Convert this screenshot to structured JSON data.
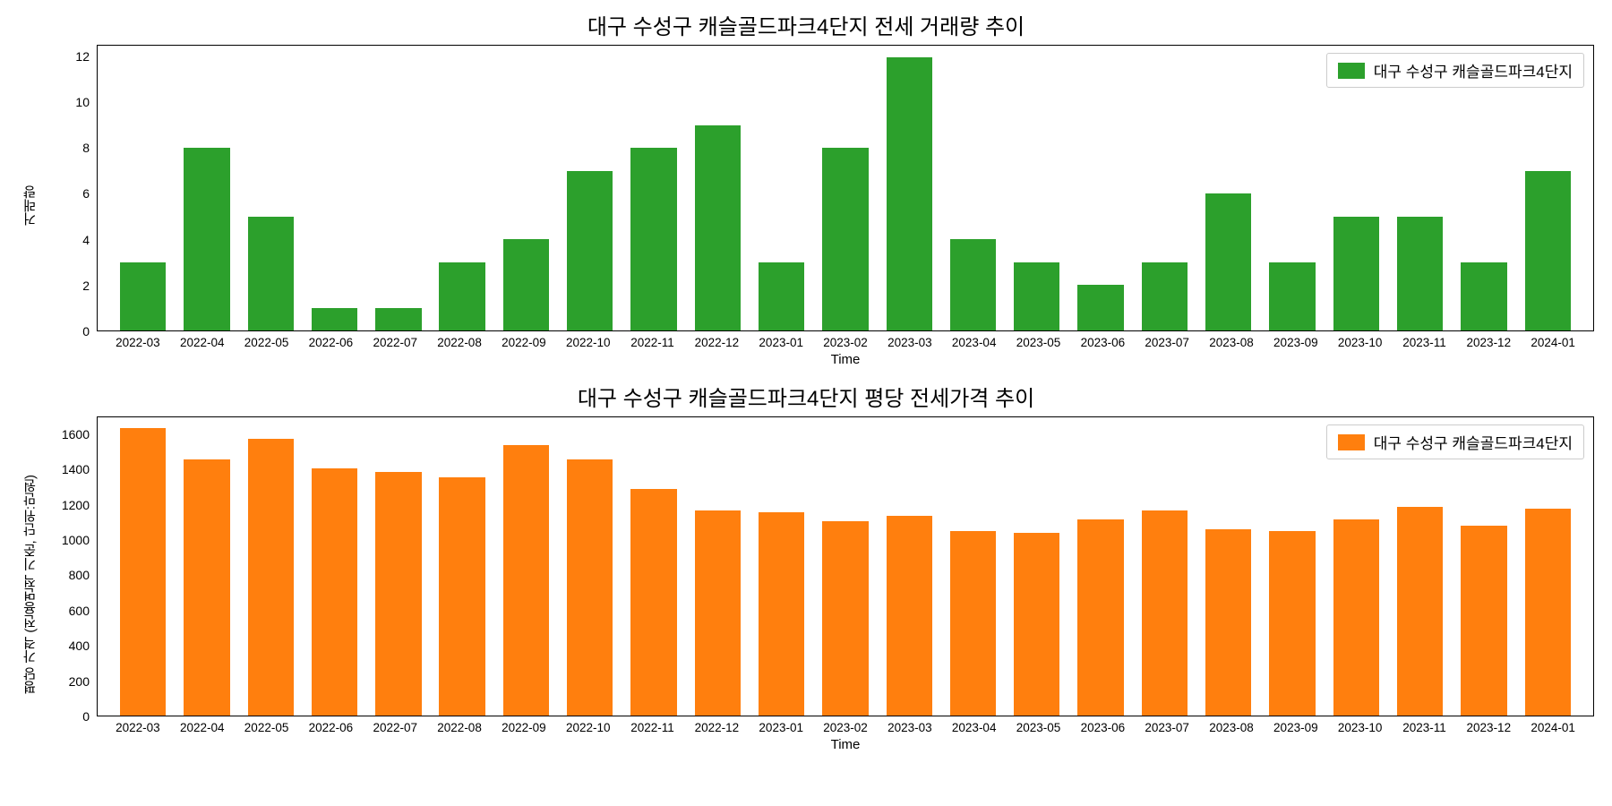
{
  "chart1": {
    "type": "bar",
    "title": "대구 수성구 캐슬골드파크4단지 전세 거래량 추이",
    "title_fontsize": 24,
    "ylabel": "거래량",
    "xlabel": "Time",
    "label_fontsize": 15,
    "categories": [
      "2022-03",
      "2022-04",
      "2022-05",
      "2022-06",
      "2022-07",
      "2022-08",
      "2022-09",
      "2022-10",
      "2022-11",
      "2022-12",
      "2023-01",
      "2023-02",
      "2023-03",
      "2023-04",
      "2023-05",
      "2023-06",
      "2023-07",
      "2023-08",
      "2023-09",
      "2023-10",
      "2023-11",
      "2023-12",
      "2024-01"
    ],
    "values": [
      3,
      8,
      5,
      1,
      1,
      3,
      4,
      7,
      8,
      9,
      3,
      8,
      12,
      4,
      3,
      2,
      3,
      6,
      3,
      5,
      5,
      3,
      7
    ],
    "bar_color": "#2ca02c",
    "ylim": [
      0,
      12.5
    ],
    "yticks": [
      0,
      2,
      4,
      6,
      8,
      10,
      12
    ],
    "background_color": "#ffffff",
    "bar_width": 0.72,
    "legend": {
      "label": "대구 수성구 캐슬골드파크4단지",
      "position": "upper-right",
      "swatch_color": "#2ca02c"
    }
  },
  "chart2": {
    "type": "bar",
    "title": "대구 수성구 캐슬골드파크4단지 평당 전세가격 추이",
    "title_fontsize": 24,
    "ylabel": "평당 가격 (전용면적 기준, 단위:만원)",
    "xlabel": "Time",
    "label_fontsize": 15,
    "categories": [
      "2022-03",
      "2022-04",
      "2022-05",
      "2022-06",
      "2022-07",
      "2022-08",
      "2022-09",
      "2022-10",
      "2022-11",
      "2022-12",
      "2023-01",
      "2023-02",
      "2023-03",
      "2023-04",
      "2023-05",
      "2023-06",
      "2023-07",
      "2023-08",
      "2023-09",
      "2023-10",
      "2023-11",
      "2023-12",
      "2024-01"
    ],
    "values": [
      1640,
      1460,
      1580,
      1410,
      1390,
      1360,
      1540,
      1460,
      1290,
      1170,
      1160,
      1110,
      1140,
      1050,
      1040,
      1120,
      1170,
      1060,
      1050,
      1120,
      1190,
      1080,
      1180
    ],
    "bar_color": "#ff7f0e",
    "ylim": [
      0,
      1700
    ],
    "yticks": [
      0,
      200,
      400,
      600,
      800,
      1000,
      1200,
      1400,
      1600
    ],
    "background_color": "#ffffff",
    "bar_width": 0.72,
    "legend": {
      "label": "대구 수성구 캐슬골드파크4단지",
      "position": "upper-right",
      "swatch_color": "#ff7f0e"
    }
  }
}
